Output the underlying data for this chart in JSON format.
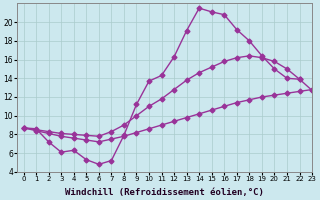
{
  "background_color": "#cce8ee",
  "grid_color": "#aacccc",
  "line_color": "#993399",
  "marker": "D",
  "markersize": 2.5,
  "linewidth": 1.0,
  "xlabel": "Windchill (Refroidissement éolien,°C)",
  "xlabel_fontsize": 6.5,
  "xlim": [
    -0.5,
    23
  ],
  "ylim": [
    4,
    22
  ],
  "yticks": [
    4,
    6,
    8,
    10,
    12,
    14,
    16,
    18,
    20
  ],
  "xticks": [
    0,
    1,
    2,
    3,
    4,
    5,
    6,
    7,
    8,
    9,
    10,
    11,
    12,
    13,
    14,
    15,
    16,
    17,
    18,
    19,
    20,
    21,
    22,
    23
  ],
  "curve1_x": [
    0,
    1,
    2,
    3,
    4,
    5,
    6,
    7,
    8,
    9,
    10,
    11,
    12,
    13,
    14,
    15,
    16,
    17,
    18,
    19,
    20,
    21,
    22
  ],
  "curve1_y": [
    8.7,
    8.6,
    7.2,
    6.1,
    6.3,
    5.3,
    4.8,
    5.2,
    7.9,
    11.2,
    13.7,
    14.3,
    16.3,
    19.1,
    21.5,
    21.1,
    20.8,
    19.2,
    18.0,
    16.4,
    15.0,
    14.0,
    13.9
  ],
  "curve2_x": [
    0,
    1,
    2,
    3,
    4,
    5,
    6,
    7,
    8,
    9,
    10,
    11,
    12,
    13,
    14,
    15,
    16,
    17,
    18,
    19,
    20,
    21,
    22,
    23
  ],
  "curve2_y": [
    8.7,
    8.4,
    8.1,
    7.8,
    7.6,
    7.4,
    7.2,
    7.5,
    7.8,
    8.2,
    8.6,
    9.0,
    9.4,
    9.8,
    10.2,
    10.6,
    11.0,
    11.4,
    11.7,
    12.0,
    12.2,
    12.4,
    12.6,
    12.8
  ],
  "curve3_x": [
    0,
    1,
    2,
    3,
    4,
    5,
    6,
    7,
    8,
    9,
    10,
    11,
    12,
    13,
    14,
    15,
    16,
    17,
    18,
    19,
    20,
    21,
    22,
    23
  ],
  "curve3_y": [
    8.7,
    8.5,
    8.3,
    8.1,
    8.0,
    7.9,
    7.8,
    8.3,
    9.0,
    10.0,
    11.0,
    11.8,
    12.8,
    13.8,
    14.6,
    15.2,
    15.8,
    16.2,
    16.4,
    16.2,
    15.8,
    15.0,
    13.9,
    12.7
  ]
}
